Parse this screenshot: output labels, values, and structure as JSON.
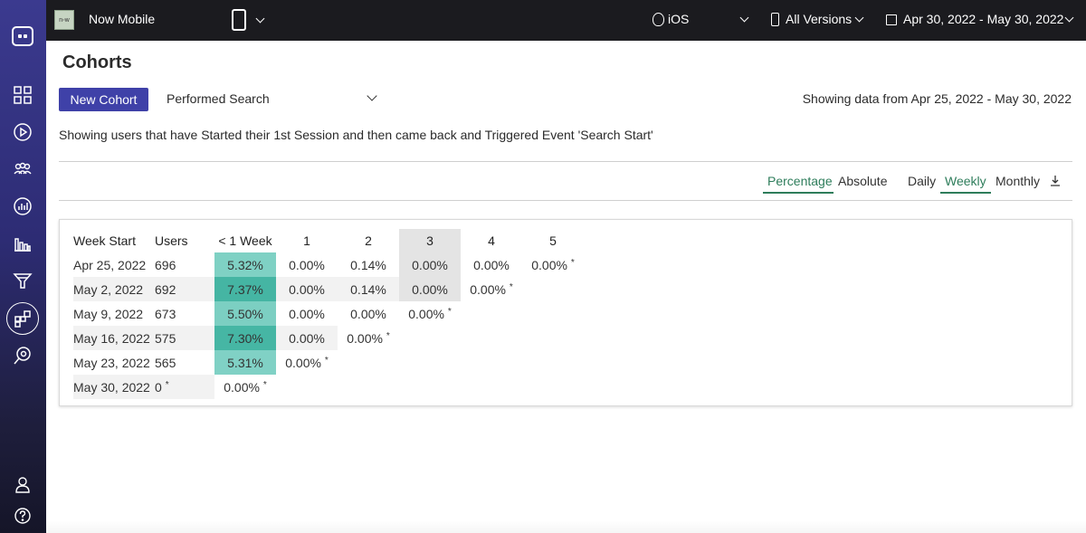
{
  "topbar": {
    "app_thumb_text": "n◦w",
    "app_name": "Now Mobile",
    "platform": "iOS",
    "versions": "All Versions",
    "date_range": "Apr 30, 2022 - May 30, 2022"
  },
  "sidebar": {
    "icons": [
      "dashboard-icon",
      "play-icon",
      "users-icon",
      "analytics-icon",
      "bar-chart-icon",
      "funnel-icon",
      "cohorts-icon",
      "search-eye-icon",
      "account-icon",
      "help-icon"
    ]
  },
  "page": {
    "title": "Cohorts",
    "new_cohort_label": "New Cohort",
    "event_selected": "Performed Search",
    "showing_range": "Showing data from Apr 25, 2022 - May 30, 2022",
    "description": "Showing users that have Started their 1st Session and then came back and Triggered Event 'Search Start'"
  },
  "toggles": {
    "percentage": "Percentage",
    "absolute": "Absolute",
    "daily": "Daily",
    "weekly": "Weekly",
    "monthly": "Monthly"
  },
  "table": {
    "headers": [
      "Week Start",
      "Users",
      "< 1 Week",
      "1",
      "2",
      "3",
      "4",
      "5"
    ],
    "rows": [
      {
        "week": "Apr 25, 2022",
        "users": "696",
        "cells": [
          "5.32%",
          "0.00%",
          "0.14%",
          "0.00%",
          "0.00%",
          "0.00%"
        ],
        "partial_last": true
      },
      {
        "week": "May 2, 2022",
        "users": "692",
        "cells": [
          "7.37%",
          "0.00%",
          "0.14%",
          "0.00%",
          "0.00%"
        ],
        "partial_last": true
      },
      {
        "week": "May 9, 2022",
        "users": "673",
        "cells": [
          "5.50%",
          "0.00%",
          "0.00%",
          "0.00%"
        ],
        "partial_last": true
      },
      {
        "week": "May 16, 2022",
        "users": "575",
        "cells": [
          "7.30%",
          "0.00%",
          "0.00%"
        ],
        "partial_last": true
      },
      {
        "week": "May 23, 2022",
        "users": "565",
        "cells": [
          "5.31%",
          "0.00%"
        ],
        "partial_last": true
      },
      {
        "week": "May 30, 2022",
        "users": "0",
        "users_partial": true,
        "cells": [
          "0.00%"
        ],
        "partial_last": true
      }
    ],
    "asterisk": "*",
    "heat_colors": {
      "5.32%": "#7fd1c4",
      "7.37%": "#45b5a3",
      "5.50%": "#7ccfc2",
      "7.30%": "#46b6a4",
      "5.31%": "#80d1c5"
    }
  }
}
